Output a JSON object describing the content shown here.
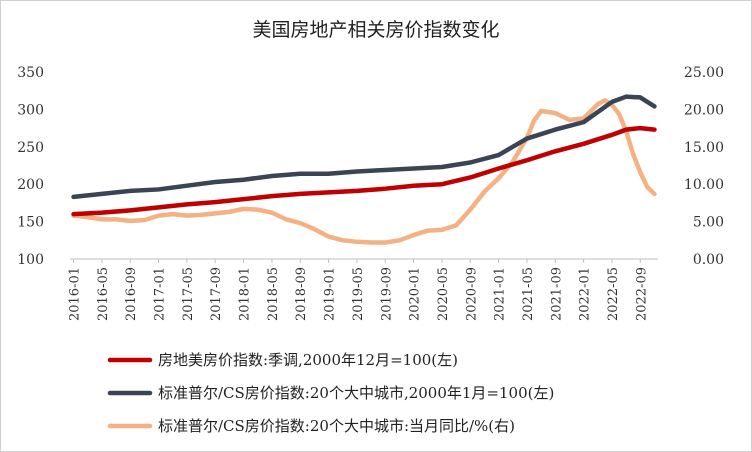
{
  "chart_data": {
    "type": "line",
    "title": "美国房地产相关房价指数变化",
    "categories": [
      "2016-01",
      "2016-05",
      "2016-09",
      "2017-01",
      "2017-05",
      "2017-09",
      "2018-01",
      "2018-05",
      "2018-09",
      "2019-01",
      "2019-05",
      "2019-09",
      "2020-01",
      "2020-05",
      "2020-09",
      "2021-01",
      "2021-05",
      "2021-09",
      "2022-01",
      "2022-05",
      "2022-09"
    ],
    "y_left": {
      "ylim": [
        100,
        350
      ],
      "ticks": [
        "100",
        "150",
        "200",
        "250",
        "300",
        "350"
      ],
      "tick_values": [
        100,
        150,
        200,
        250,
        300,
        350
      ]
    },
    "y_right": {
      "ylim": [
        0,
        25
      ],
      "ticks": [
        "0.00",
        "5.00",
        "10.00",
        "15.00",
        "20.00",
        "25.00"
      ],
      "tick_values": [
        0,
        5,
        10,
        15,
        20,
        25
      ]
    },
    "series": [
      {
        "name": "房地美房价指数:季调,2000年12月=100(左)",
        "axis": "left",
        "color": "#c00000",
        "x": [
          0,
          4,
          8,
          12,
          16,
          20,
          24,
          28,
          32,
          36,
          40,
          44,
          48,
          52,
          56,
          60,
          64,
          68,
          72,
          76,
          78,
          80,
          82
        ],
        "values": [
          160,
          162,
          165,
          169,
          173,
          176,
          180,
          184,
          187,
          189,
          191,
          194,
          198,
          200,
          209,
          221,
          232,
          244,
          254,
          266,
          273,
          275,
          273
        ]
      },
      {
        "name": "标准普尔/CS房价指数:20个大中城市,2000年1月=100(左)",
        "axis": "left",
        "color": "#3a4454",
        "x": [
          0,
          4,
          8,
          12,
          16,
          20,
          24,
          28,
          32,
          36,
          40,
          44,
          48,
          52,
          56,
          60,
          64,
          68,
          72,
          76,
          78,
          80,
          82
        ],
        "values": [
          183,
          187,
          191,
          193,
          198,
          203,
          206,
          211,
          214,
          214,
          217,
          219,
          221,
          223,
          229,
          239,
          261,
          273,
          283,
          310,
          317,
          316,
          304
        ]
      },
      {
        "name": "标准普尔/CS房价指数:20个大中城市:当月同比/%(右)",
        "axis": "right",
        "color": "#f4b183",
        "x": [
          0,
          2,
          4,
          6,
          8,
          10,
          12,
          14,
          16,
          18,
          20,
          22,
          24,
          26,
          28,
          30,
          32,
          34,
          36,
          38,
          40,
          42,
          44,
          46,
          48,
          50,
          52,
          54,
          56,
          58,
          60,
          62,
          64,
          65,
          66,
          68,
          70,
          72,
          74,
          75,
          76,
          77,
          78,
          79,
          80,
          81,
          82
        ],
        "values": [
          5.8,
          5.6,
          5.3,
          5.3,
          5.1,
          5.2,
          5.8,
          6.0,
          5.8,
          5.9,
          6.1,
          6.3,
          6.7,
          6.6,
          6.2,
          5.3,
          4.8,
          4.0,
          3.0,
          2.5,
          2.3,
          2.2,
          2.2,
          2.5,
          3.2,
          3.8,
          3.9,
          4.5,
          6.6,
          9.0,
          10.8,
          13.0,
          16.2,
          18.5,
          19.8,
          19.5,
          18.6,
          18.8,
          20.7,
          21.2,
          20.6,
          19.4,
          17.1,
          14.0,
          11.6,
          9.6,
          8.7
        ]
      }
    ],
    "legend_position": "bottom",
    "grid": false
  }
}
